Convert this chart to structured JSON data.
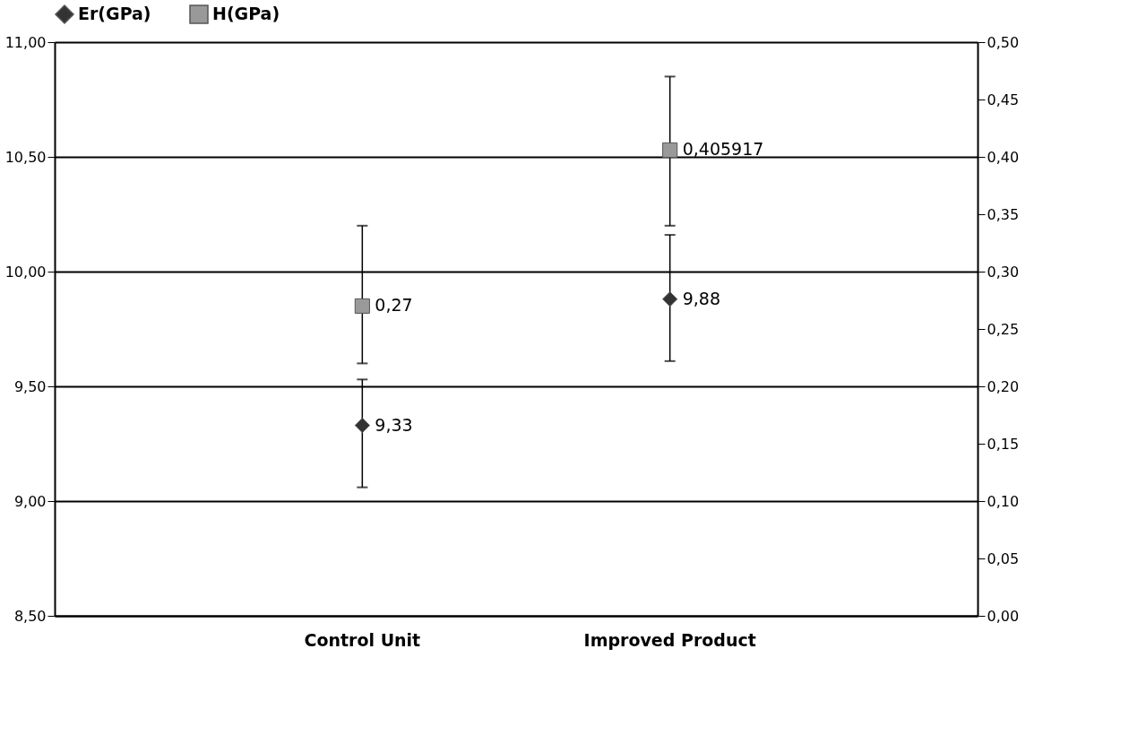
{
  "chart_data": {
    "type": "scatter",
    "categories": [
      "Control Unit",
      "Improved Product"
    ],
    "series": [
      {
        "name": "Er(GPa)",
        "color": "#333333",
        "marker": "diamond",
        "values": [
          9.33,
          9.88
        ],
        "errors": [
          [
            9.06,
            9.53
          ],
          [
            9.61,
            10.16
          ]
        ],
        "value_labels": [
          "9,33",
          "9,88"
        ]
      },
      {
        "name": "H(GPa)",
        "color": "#999999",
        "marker": "square",
        "axis": "y2",
        "values": [
          0.27,
          0.405917
        ],
        "errors": [
          [
            0.22,
            0.34
          ],
          [
            0.34,
            0.47
          ]
        ],
        "value_labels": [
          "0,27",
          "0,405917"
        ]
      }
    ],
    "ylim": [
      8.5,
      11
    ],
    "yticks": [
      {
        "value": 8.5,
        "label": "8,50"
      },
      {
        "value": 9,
        "label": "9,00"
      },
      {
        "value": 9.5,
        "label": "9,50"
      },
      {
        "value": 10,
        "label": "10,00"
      },
      {
        "value": 10.5,
        "label": "10,50"
      },
      {
        "value": 11,
        "label": "11,00"
      }
    ],
    "y2lim": [
      0,
      0.5
    ],
    "y2ticks": [
      {
        "value": 0,
        "label": "0,00"
      },
      {
        "value": 0.05,
        "label": "0,05"
      },
      {
        "value": 0.1,
        "label": "0,10"
      },
      {
        "value": 0.15,
        "label": "0,15"
      },
      {
        "value": 0.2,
        "label": "0,20"
      },
      {
        "value": 0.25,
        "label": "0,25"
      },
      {
        "value": 0.3,
        "label": "0,30"
      },
      {
        "value": 0.35,
        "label": "0,35"
      },
      {
        "value": 0.4,
        "label": "0,40"
      },
      {
        "value": 0.45,
        "label": "0,45"
      },
      {
        "value": 0.5,
        "label": "0,50"
      }
    ],
    "grid": "y",
    "legend": "top"
  }
}
